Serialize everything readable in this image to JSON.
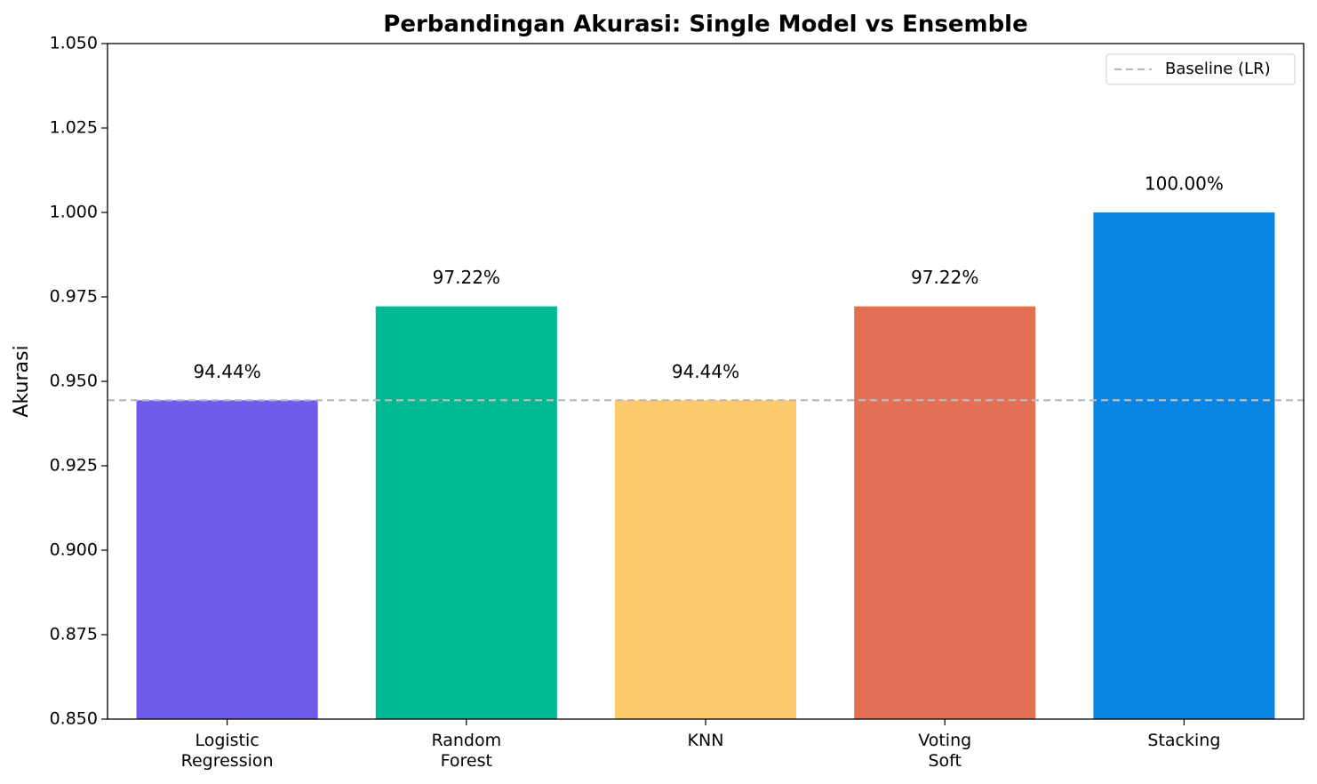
{
  "chart_data": {
    "type": "bar",
    "title": "Perbandingan Akurasi: Single Model vs Ensemble",
    "y_label": "Akurasi",
    "categories": [
      "Logistic\nRegression",
      "Random\nForest",
      "KNN",
      "Voting\nSoft",
      "Stacking"
    ],
    "values": [
      0.9444,
      0.9722,
      0.9444,
      0.9722,
      1.0
    ],
    "value_labels": [
      "94.44%",
      "97.22%",
      "94.44%",
      "97.22%",
      "100.00%"
    ],
    "colors": [
      "#6c5ce7",
      "#00b894",
      "#fdcb6e",
      "#e17055",
      "#0984e3"
    ],
    "ylim": [
      0.85,
      1.05
    ],
    "yticks": [
      {
        "value": 0.85,
        "label": "0.850"
      },
      {
        "value": 0.875,
        "label": "0.875"
      },
      {
        "value": 0.9,
        "label": "0.900"
      },
      {
        "value": 0.925,
        "label": "0.925"
      },
      {
        "value": 0.95,
        "label": "0.950"
      },
      {
        "value": 0.975,
        "label": "0.975"
      },
      {
        "value": 1.0,
        "label": "1.000"
      },
      {
        "value": 1.025,
        "label": "1.025"
      },
      {
        "value": 1.05,
        "label": "1.050"
      }
    ],
    "baseline": {
      "name": "Baseline (LR)",
      "value": 0.9444,
      "color": "#bbbbbb"
    },
    "legend": "upper right"
  }
}
